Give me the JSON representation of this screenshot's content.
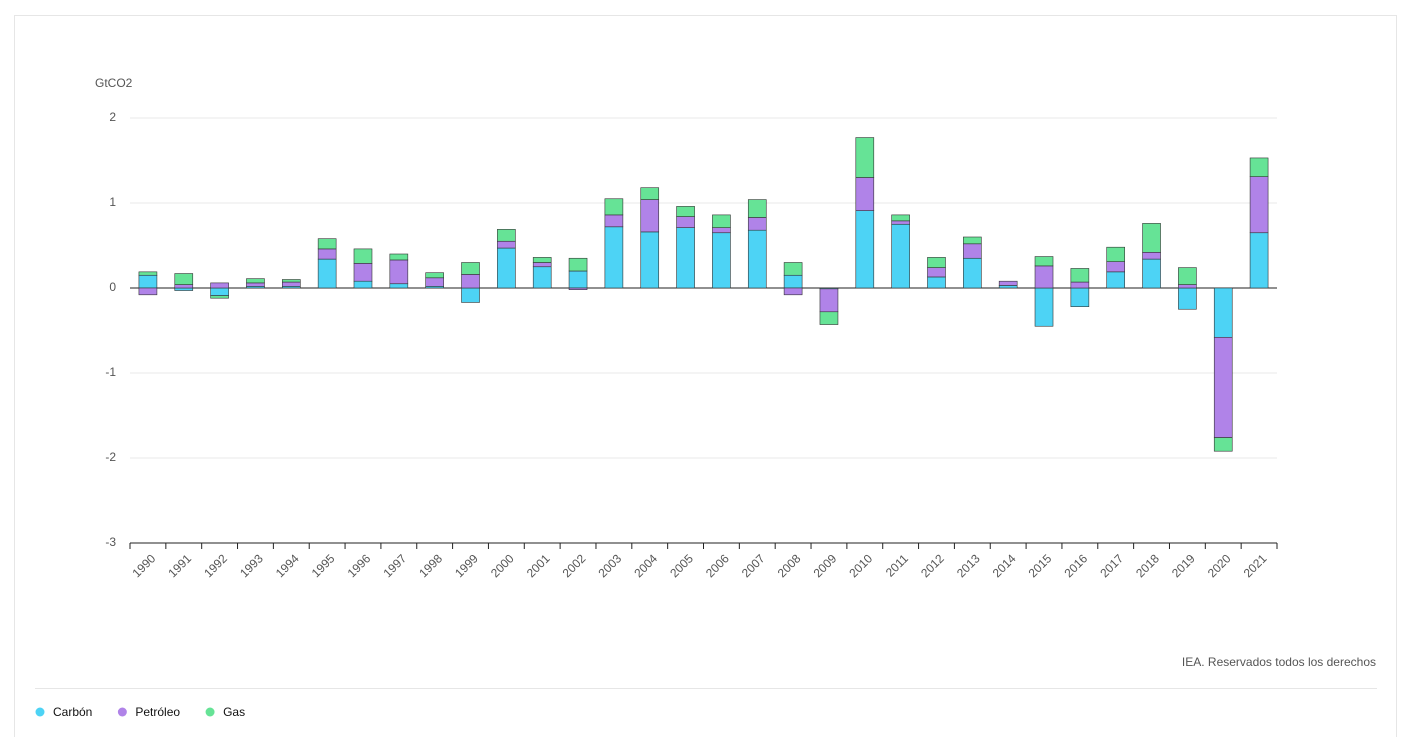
{
  "chart_data": {
    "type": "stacked_bar",
    "y_label": "GtCO2",
    "source": "IEA. Reservados todos los derechos",
    "categories": [
      "1990",
      "1991",
      "1992",
      "1993",
      "1994",
      "1995",
      "1996",
      "1997",
      "1998",
      "1999",
      "2000",
      "2001",
      "2002",
      "2003",
      "2004",
      "2005",
      "2006",
      "2007",
      "2008",
      "2009",
      "2010",
      "2011",
      "2012",
      "2013",
      "2014",
      "2015",
      "2016",
      "2017",
      "2018",
      "2019",
      "2020",
      "2021"
    ],
    "series": [
      {
        "name": "Carbón",
        "color": "#4dd3f5",
        "values": [
          0.15,
          -0.03,
          -0.09,
          0.02,
          0.02,
          0.34,
          0.08,
          0.05,
          0.02,
          -0.17,
          0.47,
          0.25,
          0.2,
          0.72,
          0.66,
          0.71,
          0.65,
          0.68,
          0.15,
          -0.01,
          0.91,
          0.75,
          0.13,
          0.35,
          0.03,
          -0.45,
          -0.22,
          0.19,
          0.34,
          -0.25,
          -0.58,
          0.65
        ]
      },
      {
        "name": "Petróleo",
        "color": "#b083e8",
        "values": [
          -0.08,
          0.04,
          0.06,
          0.04,
          0.05,
          0.12,
          0.21,
          0.28,
          0.1,
          0.16,
          0.08,
          0.05,
          -0.02,
          0.14,
          0.38,
          0.13,
          0.06,
          0.15,
          -0.08,
          -0.27,
          0.39,
          0.04,
          0.11,
          0.17,
          0.05,
          0.26,
          0.07,
          0.12,
          0.08,
          0.04,
          -1.18,
          0.66
        ]
      },
      {
        "name": "Gas",
        "color": "#66e396",
        "values": [
          0.04,
          0.13,
          -0.03,
          0.05,
          0.03,
          0.12,
          0.17,
          0.07,
          0.06,
          0.14,
          0.14,
          0.06,
          0.15,
          0.19,
          0.14,
          0.12,
          0.15,
          0.21,
          0.15,
          -0.15,
          0.47,
          0.07,
          0.12,
          0.08,
          0.0,
          0.11,
          0.16,
          0.17,
          0.34,
          0.2,
          -0.16,
          0.22
        ]
      }
    ],
    "ylim": [
      -3,
      2
    ],
    "yticks": [
      -3,
      -2,
      -1,
      0,
      1,
      2
    ],
    "grid": true,
    "legend": "bottom-left"
  }
}
